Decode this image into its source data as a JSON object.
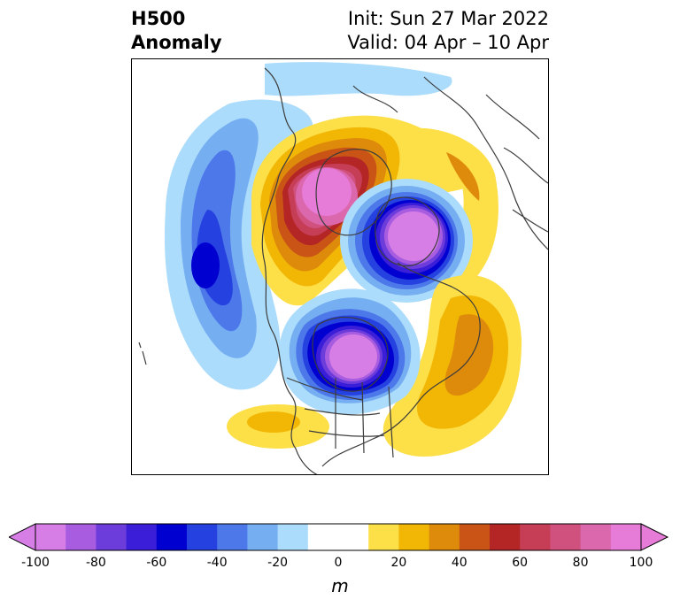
{
  "title": {
    "left_line1": "H500",
    "left_line2": "Anomaly",
    "right_line1": "Init: Sun 27 Mar 2022",
    "right_line2": "Valid: 04 Apr – 10 Apr"
  },
  "colorbar": {
    "unit": "m",
    "ticks": [
      "-100",
      "-80",
      "-60",
      "-40",
      "-20",
      "0",
      "20",
      "40",
      "60",
      "80",
      "100"
    ],
    "colors": [
      "#d77ee6",
      "#a85de0",
      "#6d3ddc",
      "#3a1ed8",
      "#0000d0",
      "#2541e0",
      "#4d78ea",
      "#76aef2",
      "#acdcfb",
      "#ffffff",
      "#ffffff",
      "#fddf48",
      "#f2b705",
      "#de8b0c",
      "#c95416",
      "#b42525",
      "#c63d56",
      "#d0507e",
      "#db67ad",
      "#e77bd8"
    ],
    "extend_low_color": "#d77ee6",
    "extend_high_color": "#e77bd8"
  },
  "map": {
    "projection": "north-polar-stereographic",
    "features": [
      "coastlines",
      "country-borders",
      "state-borders"
    ],
    "anomalies": [
      {
        "name": "Greenland-Baffin high",
        "sign": "positive",
        "peak_m": 100
      },
      {
        "name": "Siberian-Arctic low",
        "sign": "negative",
        "peak_m": -100
      },
      {
        "name": "Hudson Bay low",
        "sign": "negative",
        "peak_m": -100
      },
      {
        "name": "North Pacific low",
        "sign": "negative",
        "peak_m": -60
      },
      {
        "name": "North Atlantic high",
        "sign": "positive",
        "peak_m": 40
      },
      {
        "name": "Southwest US high",
        "sign": "positive",
        "peak_m": 20
      }
    ]
  }
}
